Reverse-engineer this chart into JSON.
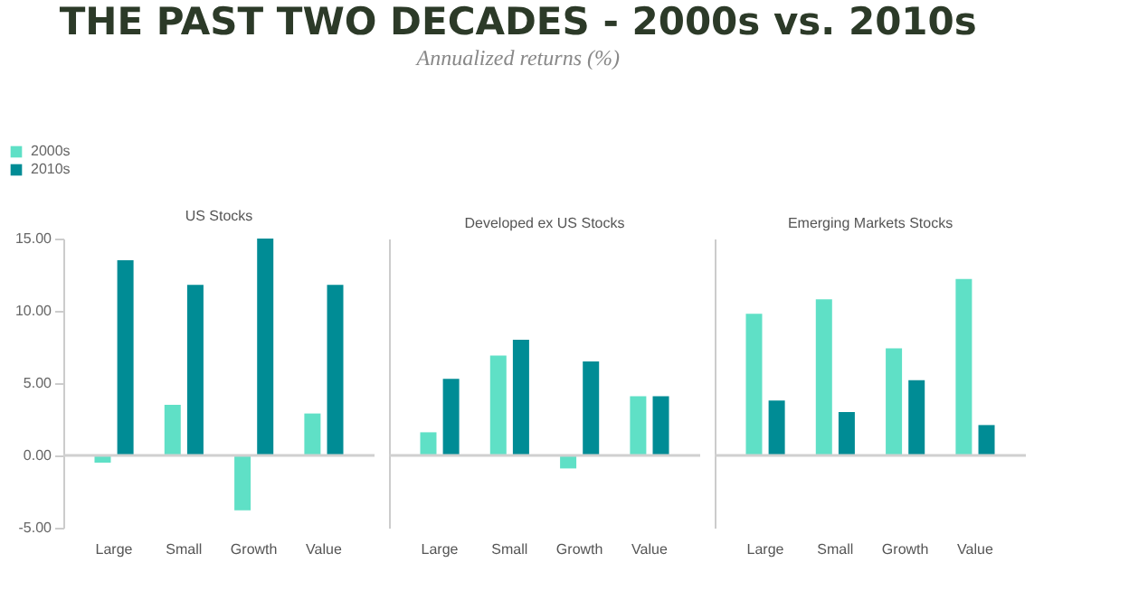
{
  "chart_data": [
    {
      "type": "other",
      "title": "THE PAST TWO DECADES - 2000s vs. 2010s",
      "subtitle": "Annualized returns (%)"
    },
    {
      "type": "bar",
      "title": "US Stocks",
      "categories": [
        "Large",
        "Small",
        "Growth",
        "Value"
      ],
      "series": [
        {
          "name": "2000s",
          "color": "#5fe0c6",
          "values": [
            -0.5,
            3.5,
            -3.8,
            2.9
          ]
        },
        {
          "name": "2010s",
          "color": "#008c95",
          "values": [
            13.5,
            11.8,
            15.0,
            11.8
          ]
        }
      ],
      "ylim": [
        -5,
        15
      ],
      "yticks": [
        {
          "value": -5,
          "label": "-5.00"
        },
        {
          "value": 0,
          "label": "0.00"
        },
        {
          "value": 5,
          "label": "5.00"
        },
        {
          "value": 10,
          "label": "10.00"
        },
        {
          "value": 15,
          "label": "15.00"
        }
      ],
      "ref_lines": [
        {
          "axis": "y",
          "value": 0,
          "label": null,
          "color": "#d0d0d0"
        }
      ],
      "legend": "top left",
      "grid": false
    },
    {
      "type": "bar",
      "title": "Developed ex US Stocks",
      "categories": [
        "Large",
        "Small",
        "Growth",
        "Value"
      ],
      "series": [
        {
          "name": "2000s",
          "color": "#5fe0c6",
          "values": [
            1.6,
            6.9,
            -0.9,
            4.1
          ]
        },
        {
          "name": "2010s",
          "color": "#008c95",
          "values": [
            5.3,
            8.0,
            6.5,
            4.1
          ]
        }
      ],
      "ylim": [
        -5,
        15
      ],
      "tick_labels": "x",
      "ref_lines": [
        {
          "axis": "y",
          "value": 0,
          "label": null,
          "color": "#d0d0d0"
        }
      ],
      "grid": false
    },
    {
      "type": "bar",
      "title": "Emerging Markets Stocks",
      "categories": [
        "Large",
        "Small",
        "Growth",
        "Value"
      ],
      "series": [
        {
          "name": "2000s",
          "color": "#5fe0c6",
          "values": [
            9.8,
            10.8,
            7.4,
            12.2
          ]
        },
        {
          "name": "2010s",
          "color": "#008c95",
          "values": [
            3.8,
            3.0,
            5.2,
            2.1
          ]
        }
      ],
      "ylim": [
        -5,
        15
      ],
      "tick_labels": "x",
      "ref_lines": [
        {
          "axis": "y",
          "value": 0,
          "label": null,
          "color": "#d0d0d0"
        }
      ],
      "grid": false
    }
  ]
}
